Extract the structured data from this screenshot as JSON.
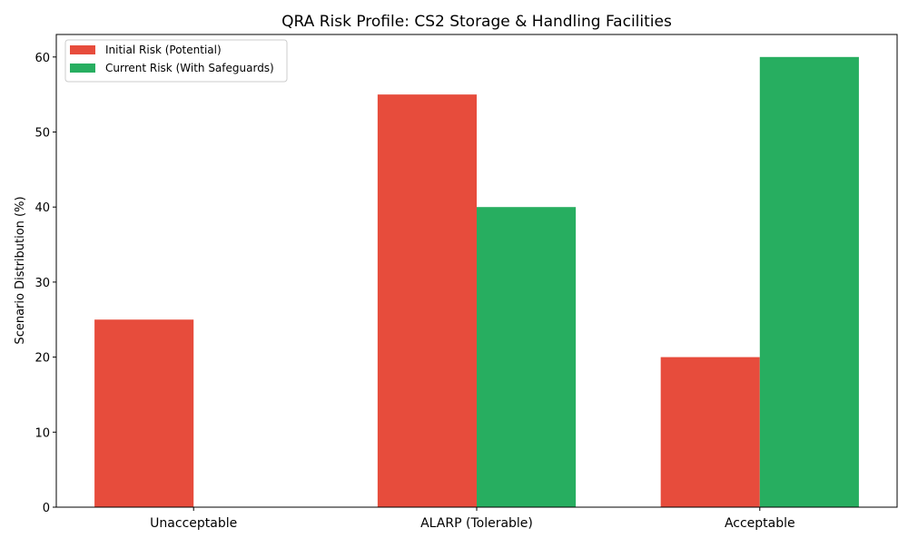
{
  "chart_data": {
    "type": "bar",
    "title": "QRA Risk Profile: CS2 Storage & Handling Facilities",
    "xlabel": "",
    "ylabel": "Scenario Distribution (%)",
    "categories": [
      "Unacceptable",
      "ALARP (Tolerable)",
      "Acceptable"
    ],
    "series": [
      {
        "name": "Initial Risk (Potential)",
        "color": "#e74c3c",
        "values": [
          25,
          55,
          20
        ]
      },
      {
        "name": "Current Risk (With Safeguards)",
        "color": "#27ae60",
        "values": [
          0,
          40,
          60
        ]
      }
    ],
    "ylim": [
      0,
      63
    ],
    "yticks": [
      0,
      10,
      20,
      30,
      40,
      50,
      60
    ],
    "grid": false,
    "legend_position": "top-left"
  }
}
